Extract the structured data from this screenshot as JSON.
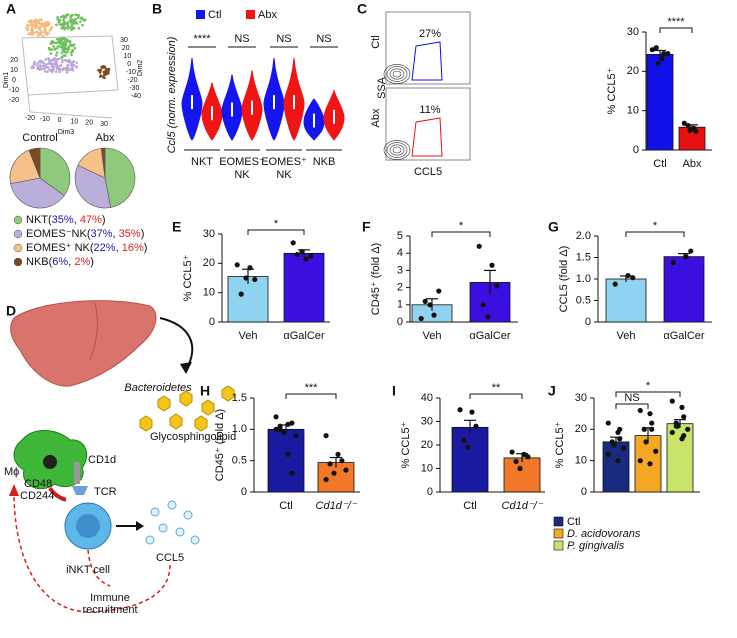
{
  "panel_labels": [
    "A",
    "B",
    "C",
    "D",
    "E",
    "F",
    "G",
    "H",
    "I",
    "J"
  ],
  "tsne": {
    "axis_labels": [
      "Dim1",
      "Dim2",
      "Dim3"
    ],
    "dim1_ticks": [
      20,
      10,
      0,
      -10,
      -20
    ],
    "dim2_ticks": [
      30,
      20,
      10,
      0,
      -10,
      -20,
      -30,
      -40
    ],
    "dim3_ticks": [
      -20,
      -10,
      0,
      10,
      20,
      30
    ]
  },
  "pie_legend_punctuation": [
    "(",
    ", ",
    ")"
  ],
  "flow": {
    "samples": [
      "Ctl",
      "Abx"
    ],
    "ylabel": "SSA",
    "xlabel": "CCL5",
    "gates": [
      "27%",
      "11%"
    ]
  },
  "diagram": {
    "bacteria": "Bacteroidetes",
    "lipid": "Glycosphingolipid",
    "cd1d": "CD1d",
    "tcr": "TCR",
    "cd48": "CD48",
    "cd244": "CD244",
    "macrophage": "Mϕ",
    "cell": "iNKT cell",
    "chemokine": "CCL5",
    "recruitment": "Immune recruitment"
  },
  "chart_data": [
    {
      "type": "pie",
      "title": "Control",
      "title_color": "#1a1aa8",
      "categories": [
        "NKT",
        "EOMES⁻NK",
        "EOMES⁺ NK",
        "NKB"
      ],
      "values": [
        35,
        37,
        22,
        6
      ],
      "value_labels": [
        "35%",
        "37%",
        "22%",
        "6%"
      ],
      "colors": [
        "#8fca7c",
        "#bcaedb",
        "#f6c08a",
        "#7a4a24"
      ]
    },
    {
      "type": "pie",
      "title": "Abx",
      "title_color": "#e02020",
      "categories": [
        "NKT",
        "EOMES⁻NK",
        "EOMES⁺ NK",
        "NKB"
      ],
      "values": [
        47,
        35,
        16,
        2
      ],
      "value_labels": [
        "47%",
        "35%",
        "16%",
        "2%"
      ],
      "colors": [
        "#8fca7c",
        "#bcaedb",
        "#f6c08a",
        "#7a4a24"
      ]
    },
    {
      "type": "violin",
      "ylabel": "Ccl5 (norm. expression)",
      "categories": [
        "NKT",
        "EOMES⁻ NK",
        "EOMES⁺ NK",
        "NKB"
      ],
      "series": [
        {
          "name": "Ctl",
          "color": "#1515f0"
        },
        {
          "name": "Abx",
          "color": "#f01515"
        }
      ],
      "annotations": [
        "****",
        "NS",
        "NS",
        "NS"
      ]
    },
    {
      "type": "bar",
      "ylabel": "% CCL5⁺",
      "categories": [
        "Ctl",
        "Abx"
      ],
      "values": [
        24.3,
        5.8
      ],
      "errors": [
        1.0,
        0.6
      ],
      "points": [
        [
          25.5,
          23.2,
          24.5,
          26,
          22,
          24.5
        ],
        [
          6.8,
          5.5,
          4.8,
          6.2,
          5.0
        ]
      ],
      "colors": [
        "#1010e8",
        "#e81010"
      ],
      "ylim": [
        0,
        30
      ],
      "yticks": [
        0,
        10,
        20,
        30
      ],
      "annotations": [
        "****"
      ]
    },
    {
      "type": "bar",
      "ylabel": "% CCL5⁺",
      "categories": [
        "Veh",
        "αGalCer"
      ],
      "values": [
        15.5,
        23.4
      ],
      "errors": [
        2.5,
        1.2
      ],
      "points": [
        [
          19.5,
          18.5,
          14.5,
          9.5,
          15
        ],
        [
          27,
          21.5,
          22.5,
          23,
          24
        ]
      ],
      "colors": [
        "#8fd3f0",
        "#3a10e0"
      ],
      "ylim": [
        0,
        30
      ],
      "yticks": [
        0,
        10,
        20,
        30
      ],
      "annotations": [
        "*"
      ]
    },
    {
      "type": "bar",
      "ylabel": "CD45⁺ (fold Δ)",
      "categories": [
        "Veh",
        "αGalCer"
      ],
      "values": [
        1.0,
        2.3
      ],
      "errors": [
        0.35,
        0.7
      ],
      "points": [
        [
          0.2,
          0.4,
          1.8,
          1.2,
          1.0
        ],
        [
          4.4,
          3.3,
          2.1,
          1.0,
          0.3
        ]
      ],
      "colors": [
        "#8fd3f0",
        "#3a10e0"
      ],
      "ylim": [
        0,
        5
      ],
      "yticks": [
        0,
        1,
        2,
        3,
        4,
        5
      ],
      "annotations": [
        "*"
      ]
    },
    {
      "type": "bar",
      "ylabel": "CCL5 (fold Δ)",
      "categories": [
        "Veh",
        "αGalCer"
      ],
      "values": [
        1.0,
        1.52
      ],
      "errors": [
        0.07,
        0.07
      ],
      "points": [
        [
          0.88,
          1.08,
          1.03
        ],
        [
          1.38,
          1.52,
          1.65
        ]
      ],
      "colors": [
        "#8fd3f0",
        "#3a10e0"
      ],
      "ylim": [
        0,
        2
      ],
      "yticks": [
        0,
        0.5,
        {
          "value": 1,
          "label": "1.0"
        },
        1.5,
        {
          "value": 2,
          "label": "2.0"
        }
      ],
      "annotations": [
        "*"
      ]
    },
    {
      "type": "bar",
      "ylabel": "CD45⁺ (fold Δ)",
      "categories": [
        "Ctl",
        "Cd1d⁻/⁻"
      ],
      "values": [
        1.0,
        0.47
      ],
      "errors": [
        0.07,
        0.08
      ],
      "points": [
        [
          1.2,
          1.08,
          1.1,
          1.0,
          0.95,
          0.9,
          1.0,
          0.6,
          0.3,
          1.05
        ],
        [
          0.9,
          0.6,
          0.5,
          0.45,
          0.3,
          0.35,
          0.2
        ]
      ],
      "colors": [
        "#1a1aa0",
        "#f07828"
      ],
      "ylim": [
        0,
        1.5
      ],
      "yticks": [
        0,
        0.5,
        {
          "value": 1,
          "label": "1.0"
        },
        1.5
      ],
      "annotations": [
        "***"
      ]
    },
    {
      "type": "bar",
      "ylabel": "% CCL5⁺",
      "categories": [
        "Ctl",
        "Cd1d⁻/⁻"
      ],
      "values": [
        27.5,
        14.5
      ],
      "errors": [
        3,
        1.8
      ],
      "points": [
        [
          35,
          34,
          28,
          22,
          19
        ],
        [
          17,
          16,
          15,
          13,
          10
        ]
      ],
      "colors": [
        "#1a1aa0",
        "#f07828"
      ],
      "ylim": [
        0,
        40
      ],
      "yticks": [
        0,
        10,
        20,
        30,
        40
      ],
      "annotations": [
        "**"
      ]
    },
    {
      "type": "bar",
      "ylabel": "% CCL5⁺",
      "categories": [
        "Ctl",
        "D. acidovorans",
        "P. gingivalis"
      ],
      "values": [
        16,
        18,
        21.8
      ],
      "errors": [
        1.5,
        2.5,
        1.3
      ],
      "points": [
        [
          22,
          19,
          17,
          16,
          15,
          14,
          12,
          10,
          20
        ],
        [
          26,
          25,
          22,
          20,
          16,
          13,
          10,
          9,
          20
        ],
        [
          29,
          27,
          24,
          22,
          21,
          20,
          19,
          17,
          18,
          21
        ]
      ],
      "colors": [
        "#1a2a80",
        "#f5a623",
        "#c8e46a"
      ],
      "ylim": [
        0,
        30
      ],
      "yticks": [
        0,
        10,
        20,
        30
      ],
      "annotations": [
        "NS",
        "*"
      ],
      "legend": true
    }
  ]
}
